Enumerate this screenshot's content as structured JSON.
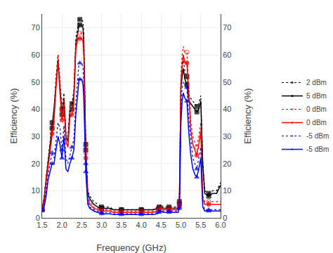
{
  "chart_data": {
    "type": "line",
    "xlabel": "Frequency (GHz)",
    "ylabel": "Efficiency (%)",
    "y2label": "Efficiency (%)",
    "x": [
      1.5,
      1.55,
      1.6,
      1.65,
      1.7,
      1.75,
      1.8,
      1.85,
      1.9,
      1.95,
      2.0,
      2.05,
      2.1,
      2.15,
      2.2,
      2.25,
      2.3,
      2.35,
      2.4,
      2.43,
      2.45,
      2.47,
      2.5,
      2.53,
      2.55,
      2.6,
      2.65,
      2.7,
      2.8,
      2.9,
      3.0,
      3.1,
      3.2,
      3.3,
      3.4,
      3.5,
      3.6,
      3.7,
      3.8,
      3.9,
      4.0,
      4.1,
      4.2,
      4.3,
      4.4,
      4.45,
      4.5,
      4.55,
      4.6,
      4.65,
      4.7,
      4.8,
      4.85,
      4.9,
      4.93,
      4.96,
      5.0,
      5.03,
      5.06,
      5.1,
      5.15,
      5.2,
      5.25,
      5.3,
      5.35,
      5.4,
      5.45,
      5.5,
      5.55,
      5.6,
      5.7,
      5.8,
      5.9,
      6.0
    ],
    "series": [
      {
        "name": "2 dBm",
        "color": "black",
        "line_style": "dotted",
        "marker": "square",
        "values": [
          3,
          8,
          15,
          21,
          28,
          35,
          40,
          52,
          60,
          50,
          40,
          46,
          31,
          30,
          41,
          42,
          47,
          66,
          71,
          73,
          73,
          73,
          73,
          72,
          68,
          27,
          10,
          8,
          6,
          5,
          4,
          4,
          4,
          3,
          3,
          3,
          3,
          3,
          3,
          3,
          3,
          3,
          3,
          3,
          4,
          4,
          5,
          4,
          4,
          4,
          4,
          4,
          4,
          4,
          4,
          6,
          51,
          55,
          58,
          54,
          52,
          45,
          44,
          43,
          42,
          41,
          42,
          45,
          21,
          10,
          9,
          10,
          10,
          13
        ]
      },
      {
        "name": "5 dBm",
        "color": "black",
        "line_style": "solid",
        "marker": "square",
        "values": [
          3,
          7,
          14,
          20,
          27,
          33,
          40,
          50,
          58,
          48,
          38,
          44,
          30,
          28,
          39,
          40,
          45,
          64,
          69,
          71,
          71,
          71,
          71,
          70,
          65,
          25,
          9,
          7,
          5,
          4,
          3.5,
          3.5,
          3.5,
          3,
          3,
          3,
          3,
          3,
          3,
          3,
          3,
          3,
          3,
          3,
          3.5,
          3.5,
          4,
          3.5,
          3.5,
          3.5,
          3.5,
          3.5,
          3.5,
          3.5,
          3.5,
          5,
          48,
          52,
          55,
          51,
          49,
          43,
          42,
          41,
          40,
          39,
          40,
          43,
          20,
          9,
          8,
          9,
          9,
          12
        ]
      },
      {
        "name": "0 dBm",
        "color": "red",
        "line_style": "dotted",
        "marker": "circle-open",
        "values": [
          3,
          7,
          14,
          20,
          27,
          33,
          38,
          50,
          60,
          49,
          38,
          44,
          30,
          28,
          39,
          40,
          45,
          64,
          68,
          68,
          68,
          68,
          68,
          67,
          63,
          24,
          8,
          6,
          4,
          3.5,
          3,
          3,
          3,
          2.5,
          2.5,
          2.5,
          2.5,
          2.5,
          2.5,
          2.5,
          2.5,
          2.5,
          2.5,
          2.5,
          3,
          3.5,
          4,
          3.5,
          3.5,
          3.5,
          3.5,
          3.5,
          3.5,
          3.5,
          3.5,
          5,
          53,
          60,
          63,
          61,
          61,
          48,
          35,
          30,
          28,
          26,
          30,
          35,
          8,
          6,
          6,
          6,
          6,
          6
        ]
      },
      {
        "name": "0 dBm",
        "color": "red",
        "line_style": "solid",
        "marker": "circle",
        "values": [
          3,
          6,
          13,
          19,
          25,
          31,
          36,
          48,
          57,
          46,
          36,
          42,
          28,
          26,
          37,
          38,
          43,
          62,
          66,
          66,
          66,
          66,
          66,
          65,
          60,
          22,
          7,
          5,
          3.5,
          3,
          2.5,
          2.5,
          2.5,
          2,
          2,
          2,
          2,
          2,
          2,
          2,
          2,
          2,
          2,
          2,
          2.5,
          3,
          3.5,
          3,
          3,
          3,
          3,
          3,
          3,
          3,
          3,
          4.5,
          50,
          56,
          60,
          57,
          57,
          45,
          32,
          27,
          25,
          23,
          27,
          32,
          7,
          5,
          5,
          5,
          5,
          5
        ]
      },
      {
        "name": "-5 dBm",
        "color": "blue",
        "line_style": "dotted",
        "marker": "triangle-up",
        "values": [
          3,
          5,
          10,
          16,
          20,
          24,
          22,
          28,
          35,
          33,
          25,
          34,
          22,
          20,
          23,
          26,
          29,
          43,
          52,
          57,
          57,
          57,
          57,
          55,
          50,
          20,
          6,
          4,
          3,
          2.5,
          2,
          2,
          2,
          1.5,
          1.5,
          1.5,
          1.5,
          1.5,
          1.5,
          1.5,
          1.5,
          1.5,
          1.5,
          1.5,
          2,
          2.5,
          3,
          2.5,
          2.5,
          2.5,
          2.5,
          2.5,
          2.5,
          2.5,
          2.5,
          4,
          40,
          48,
          50,
          49,
          48,
          36,
          28,
          22,
          20,
          18,
          22,
          26,
          5,
          3,
          3,
          3,
          3,
          3
        ]
      },
      {
        "name": "-5 dBm",
        "color": "blue",
        "line_style": "solid",
        "marker": "triangle-up",
        "values": [
          3,
          4,
          8,
          14,
          17,
          20,
          20,
          25,
          30,
          27,
          22,
          30,
          18,
          17,
          20,
          22,
          25,
          38,
          46,
          51,
          51,
          51,
          51,
          49,
          44,
          17,
          5,
          3.5,
          2.5,
          2,
          1.5,
          1.5,
          1.5,
          1.2,
          1.2,
          1.2,
          1.2,
          1.2,
          1.2,
          1.2,
          1.2,
          1.2,
          1.2,
          1.2,
          1.5,
          2,
          2.5,
          2,
          2,
          2,
          2,
          2,
          2,
          2,
          2,
          3.5,
          35,
          43,
          46,
          44,
          43,
          31,
          23,
          18,
          16,
          15,
          18,
          22,
          4,
          2.5,
          2.5,
          2.5,
          2.5,
          2.5
        ]
      }
    ],
    "xlim": [
      1.5,
      6.0
    ],
    "xticks": [
      1.5,
      {
        "value": 2,
        "label": "2.0"
      },
      2.5,
      {
        "value": 3,
        "label": "3.0"
      },
      3.5,
      {
        "value": 4,
        "label": "4.0"
      },
      4.5,
      {
        "value": 5,
        "label": "5.0"
      },
      5.5,
      {
        "value": 6,
        "label": "6.0"
      }
    ],
    "ylim": [
      0,
      75
    ],
    "yticks": [
      0,
      10,
      20,
      30,
      40,
      50,
      60,
      70
    ],
    "y2lim": [
      0,
      75
    ],
    "y2ticks": [
      0,
      10,
      20,
      30,
      40,
      50,
      60,
      70
    ],
    "grid": true,
    "legend": "right"
  }
}
